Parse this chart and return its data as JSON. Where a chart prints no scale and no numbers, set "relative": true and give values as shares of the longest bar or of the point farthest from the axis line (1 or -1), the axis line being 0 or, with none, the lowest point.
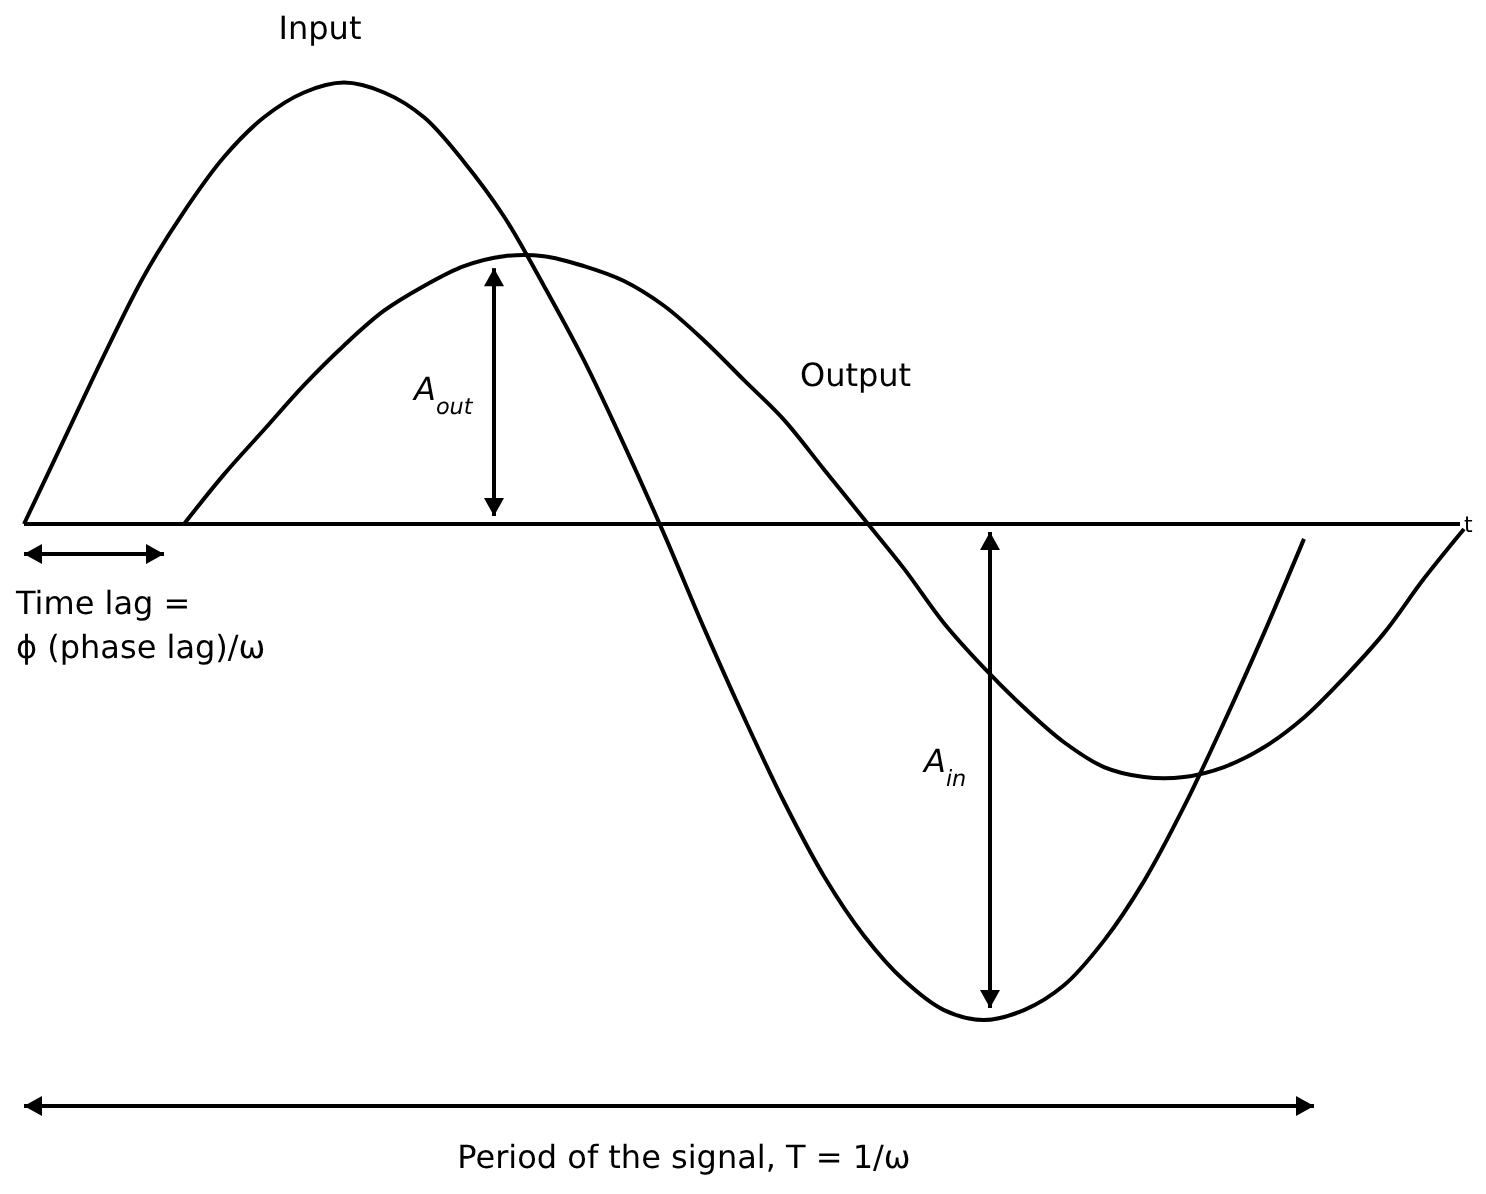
{
  "chart_data": {
    "type": "line",
    "relative": true,
    "xlabel": "t",
    "legend": false,
    "marker": "none",
    "line_style": "solid",
    "categories": [
      null,
      null,
      null,
      null,
      null,
      null,
      null,
      null,
      null,
      null,
      null,
      null,
      null,
      null,
      null,
      null,
      null,
      null,
      null,
      null,
      null,
      null,
      null,
      null,
      null,
      null,
      null,
      null,
      null,
      null,
      null,
      null,
      null,
      null,
      null,
      null,
      null
    ],
    "series": [
      {
        "name": "Input",
        "color": "#000000",
        "values": [
          0,
          0.17,
          0.34,
          0.5,
          0.63,
          0.74,
          0.82,
          0.87,
          0.89,
          0.87,
          0.82,
          0.73,
          0.62,
          0.48,
          0.33,
          0.16,
          -0.02,
          -0.21,
          -0.39,
          -0.56,
          -0.71,
          -0.83,
          -0.92,
          -0.98,
          -1,
          -0.98,
          -0.93,
          -0.84,
          -0.72,
          -0.57,
          -0.4,
          -0.22,
          -0.03,
          null,
          null,
          null,
          null
        ]
      },
      {
        "name": "Output",
        "color": "#000000",
        "values": [
          null,
          null,
          null,
          null,
          0,
          0.1,
          0.19,
          0.28,
          0.36,
          0.43,
          0.48,
          0.52,
          0.54,
          0.54,
          0.52,
          0.49,
          0.44,
          0.37,
          0.29,
          0.21,
          0.11,
          0.01,
          -0.09,
          -0.2,
          -0.29,
          -0.37,
          -0.44,
          -0.49,
          -0.51,
          -0.51,
          -0.49,
          -0.45,
          -0.39,
          -0.31,
          -0.22,
          -0.11,
          -0.01
        ]
      }
    ],
    "annotations": [
      "A$_{out}$",
      "A$_{in}$",
      "Time lag =\nϕ (phase lag)/ω",
      "Period of the signal, T = 1/ω"
    ]
  }
}
